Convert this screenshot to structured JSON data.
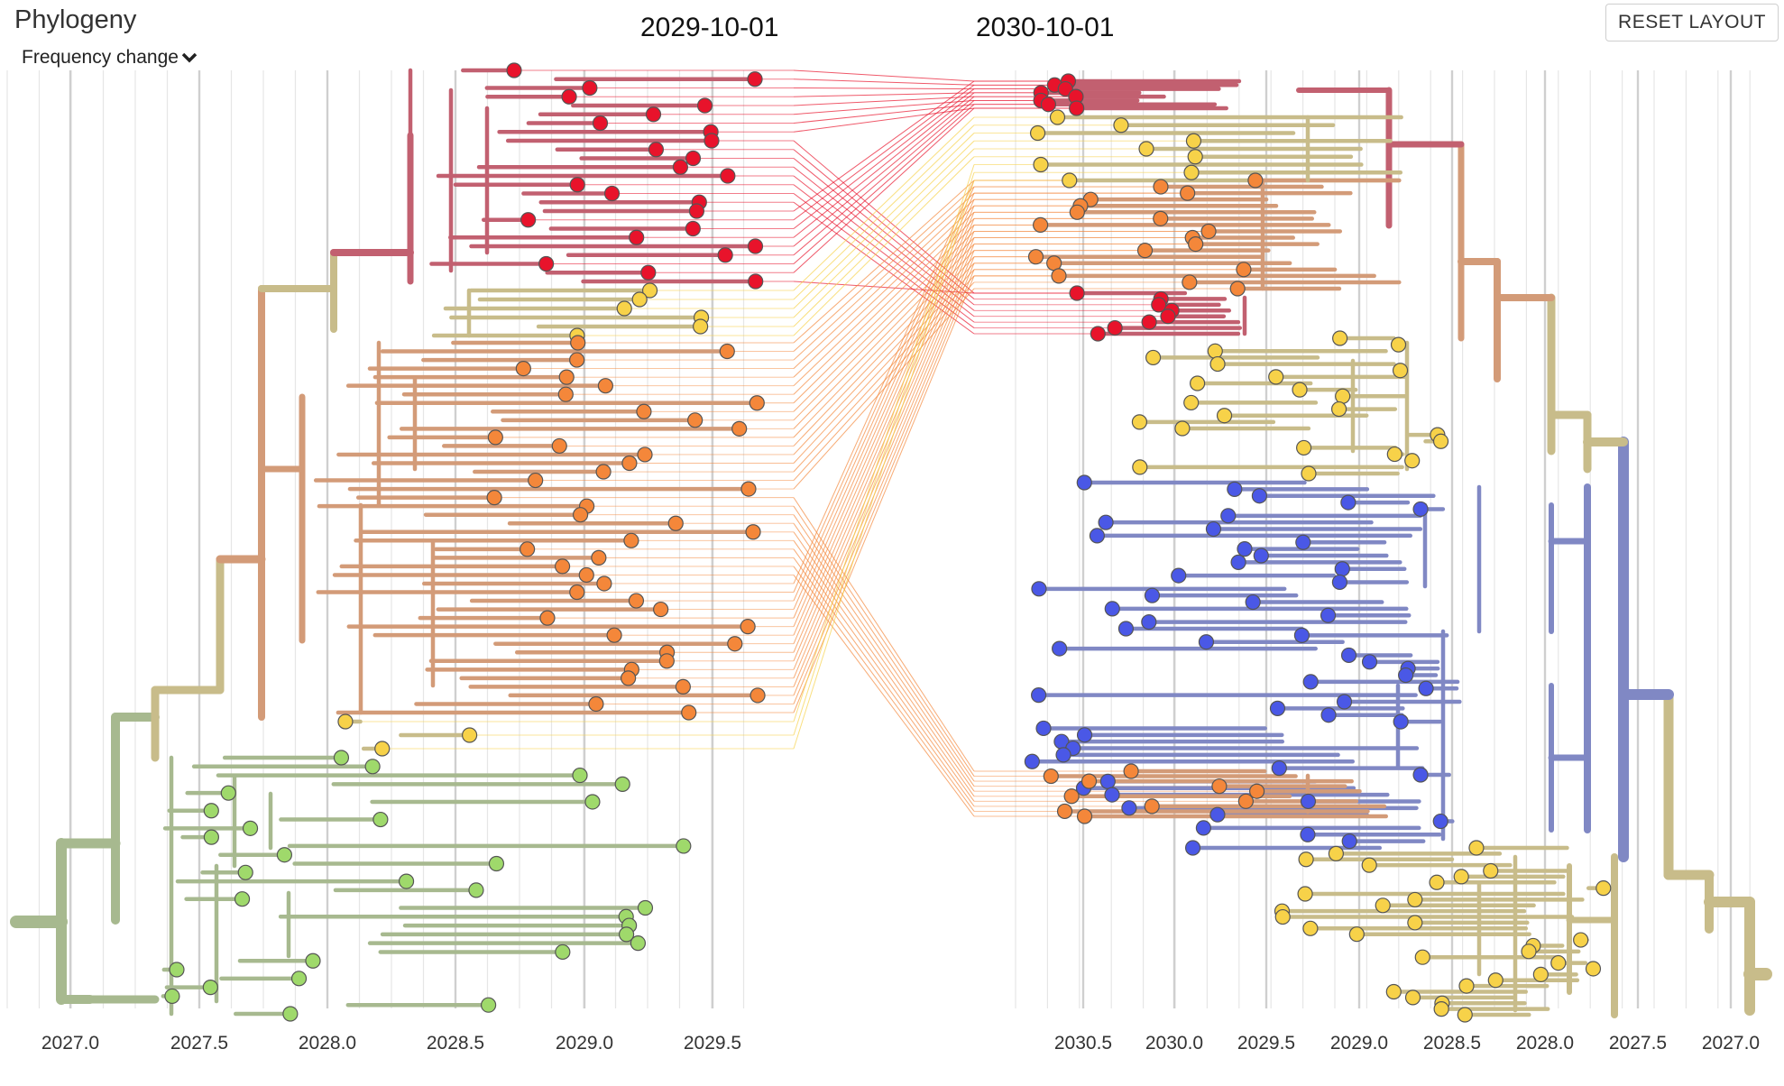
{
  "panel": {
    "title": "Phylogeny",
    "color_by": "Frequency change",
    "reset_label": "RESET LAYOUT"
  },
  "trees": {
    "left_date": "2029-10-01",
    "right_date": "2030-10-01"
  },
  "axis": {
    "left_ticks": [
      "2027.0",
      "2027.5",
      "2028.0",
      "2028.5",
      "2029.0",
      "2029.5"
    ],
    "right_ticks": [
      "2030.5",
      "2030.0",
      "2029.5",
      "2029.0",
      "2028.5",
      "2028.0",
      "2027.5",
      "2027.0"
    ]
  },
  "colors": {
    "red": "#e8132b",
    "orange": "#f4873a",
    "yellow": "#f7d249",
    "green": "#9fd96b",
    "blue": "#4a58e6",
    "branch_red": "#c26070",
    "branch_orange": "#d39b78",
    "branch_tan": "#c8bc8a",
    "branch_green": "#a7b98f",
    "branch_blue": "#8088c4"
  }
}
